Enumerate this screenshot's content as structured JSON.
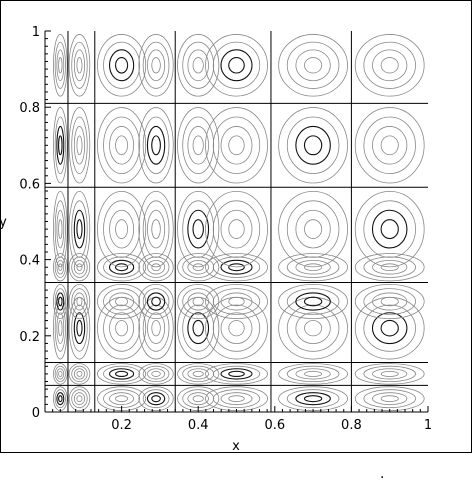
{
  "chart_data": {
    "type": "contour",
    "title": "",
    "xlabel": "x",
    "ylabel": "y",
    "xlim": [
      0,
      1
    ],
    "ylim": [
      0,
      1
    ],
    "xticks": [
      0.2,
      0.4,
      0.6,
      0.8,
      1
    ],
    "xtick_labels": [
      "0.2",
      "0.4",
      "0.6",
      "0.8",
      "1"
    ],
    "yticks": [
      0,
      0.2,
      0.4,
      0.6,
      0.8,
      1
    ],
    "ytick_labels": [
      "0",
      "0.2",
      "0.4",
      "0.6",
      "0.8",
      "1"
    ],
    "grid": false,
    "vertical_lines_x": [
      0.06,
      0.13,
      0.34,
      0.59,
      0.8
    ],
    "horizontal_lines_y": [
      0.07,
      0.13,
      0.34,
      0.59,
      0.81
    ],
    "column_centers_x": [
      0.04,
      0.09,
      0.2,
      0.29,
      0.4,
      0.5,
      0.7,
      0.9
    ],
    "row_centers_y": [
      0.035,
      0.1,
      0.22,
      0.29,
      0.38,
      0.48,
      0.7,
      0.91
    ],
    "line_color": "#000000"
  },
  "footnote_mark": "."
}
